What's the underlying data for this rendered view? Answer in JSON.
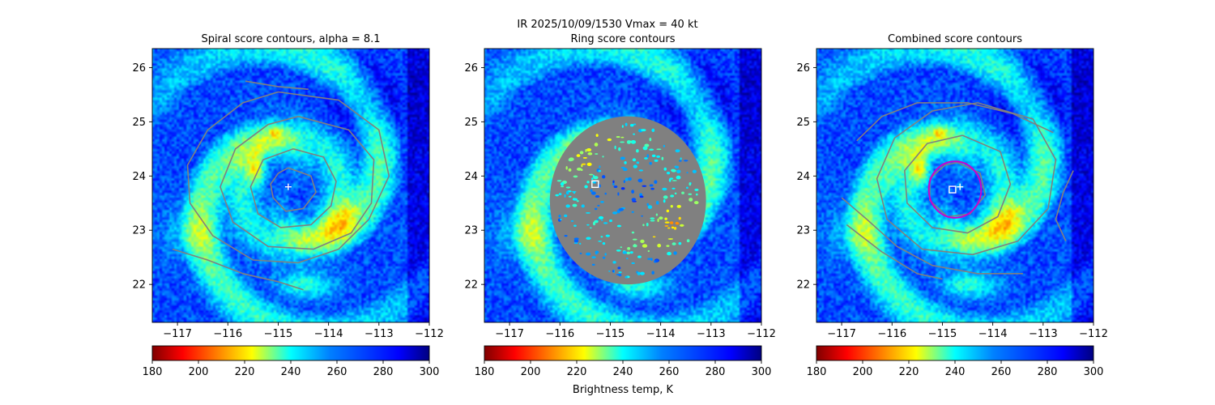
{
  "figure": {
    "suptitle": "IR  2025/10/09/1530    Vmax = 40 kt",
    "colorbar_label": "Brightness temp, K"
  },
  "chart_data": [
    {
      "type": "heatmap",
      "title": "Spiral score contours, alpha =  8.1",
      "xlim": [
        -117.5,
        -112
      ],
      "ylim": [
        21.3,
        26.35
      ],
      "xticks": [
        -117,
        -116,
        -115,
        -114,
        -113,
        -112
      ],
      "xtick_labels": [
        "−117",
        "−116",
        "−115",
        "−114",
        "−113",
        "−112"
      ],
      "yticks": [
        22,
        23,
        24,
        25,
        26
      ],
      "ytick_labels": [
        "22",
        "23",
        "24",
        "25",
        "26"
      ],
      "colormap": "jet_r",
      "colorbar": {
        "min": 180,
        "max": 300,
        "ticks": [
          180,
          200,
          220,
          240,
          260,
          280,
          300
        ],
        "labels": [
          "180",
          "200",
          "220",
          "240",
          "260",
          "280",
          "300"
        ]
      },
      "contour_color": "#808080",
      "contours": [
        [
          [
            -114.8,
            24.15
          ],
          [
            -114.35,
            24.0
          ],
          [
            -114.25,
            23.7
          ],
          [
            -114.5,
            23.4
          ],
          [
            -114.85,
            23.35
          ],
          [
            -115.1,
            23.6
          ],
          [
            -115.15,
            23.85
          ],
          [
            -115.0,
            24.05
          ],
          [
            -114.8,
            24.15
          ]
        ],
        [
          [
            -114.7,
            24.5
          ],
          [
            -114.1,
            24.35
          ],
          [
            -113.85,
            23.9
          ],
          [
            -113.95,
            23.45
          ],
          [
            -114.35,
            23.1
          ],
          [
            -114.95,
            23.05
          ],
          [
            -115.4,
            23.3
          ],
          [
            -115.55,
            23.8
          ],
          [
            -115.3,
            24.3
          ],
          [
            -114.7,
            24.5
          ]
        ],
        [
          [
            -114.6,
            25.1
          ],
          [
            -113.6,
            24.85
          ],
          [
            -113.1,
            24.3
          ],
          [
            -113.15,
            23.5
          ],
          [
            -113.55,
            22.95
          ],
          [
            -114.3,
            22.65
          ],
          [
            -115.2,
            22.7
          ],
          [
            -115.9,
            23.15
          ],
          [
            -116.15,
            23.8
          ],
          [
            -115.85,
            24.5
          ],
          [
            -115.2,
            24.95
          ],
          [
            -114.6,
            25.1
          ]
        ],
        [
          [
            -115.0,
            25.55
          ],
          [
            -113.8,
            25.4
          ],
          [
            -113.0,
            24.85
          ],
          [
            -112.8,
            24.0
          ],
          [
            -113.2,
            23.2
          ],
          [
            -113.8,
            22.65
          ],
          [
            -114.6,
            22.4
          ],
          [
            -115.5,
            22.45
          ],
          [
            -116.3,
            22.9
          ],
          [
            -116.75,
            23.5
          ],
          [
            -116.8,
            24.2
          ],
          [
            -116.4,
            24.85
          ],
          [
            -115.7,
            25.35
          ],
          [
            -115.0,
            25.55
          ]
        ],
        [
          [
            -117.1,
            22.65
          ],
          [
            -116.4,
            22.45
          ],
          [
            -115.7,
            22.2
          ],
          [
            -115.0,
            22.05
          ],
          [
            -114.5,
            21.9
          ]
        ],
        [
          [
            -115.65,
            25.75
          ],
          [
            -115.0,
            25.65
          ],
          [
            -114.4,
            25.6
          ]
        ]
      ],
      "markers": [
        {
          "shape": "plus",
          "lon": -114.8,
          "lat": 23.8,
          "color": "#ffffff"
        }
      ]
    },
    {
      "type": "heatmap",
      "title": "Ring score contours",
      "xlim": [
        -117.5,
        -112
      ],
      "ylim": [
        21.3,
        26.35
      ],
      "xticks": [
        -117,
        -116,
        -115,
        -114,
        -113,
        -112
      ],
      "xtick_labels": [
        "−117",
        "−116",
        "−115",
        "−114",
        "−113",
        "−112"
      ],
      "yticks": [
        22,
        23,
        24,
        25,
        26
      ],
      "ytick_labels": [
        "22",
        "23",
        "24",
        "25",
        "26"
      ],
      "colormap": "jet_r",
      "colorbar": {
        "min": 180,
        "max": 300,
        "ticks": [
          180,
          200,
          220,
          240,
          260,
          280,
          300
        ],
        "labels": [
          "180",
          "200",
          "220",
          "240",
          "260",
          "280",
          "300"
        ]
      },
      "contour_color": "#808080",
      "ring_disk": {
        "lon": -114.65,
        "lat": 23.55,
        "radius_deg": 1.55
      },
      "markers": [
        {
          "shape": "square",
          "lon": -115.3,
          "lat": 23.85,
          "color": "#ffffff"
        }
      ]
    },
    {
      "type": "heatmap",
      "title": "Combined score contours",
      "xlim": [
        -117.5,
        -112
      ],
      "ylim": [
        21.3,
        26.35
      ],
      "xticks": [
        -117,
        -116,
        -115,
        -114,
        -113,
        -112
      ],
      "xtick_labels": [
        "−117",
        "−116",
        "−115",
        "−114",
        "−113",
        "−112"
      ],
      "yticks": [
        22,
        23,
        24,
        25,
        26
      ],
      "ytick_labels": [
        "22",
        "23",
        "24",
        "25",
        "26"
      ],
      "colormap": "jet_r",
      "colorbar": {
        "min": 180,
        "max": 300,
        "ticks": [
          180,
          200,
          220,
          240,
          260,
          280,
          300
        ],
        "labels": [
          "180",
          "200",
          "220",
          "240",
          "260",
          "280",
          "300"
        ]
      },
      "contour_color": "#808080",
      "contours": [
        [
          [
            -114.7,
            24.25
          ],
          [
            -114.25,
            24.05
          ],
          [
            -114.15,
            23.65
          ],
          [
            -114.45,
            23.3
          ],
          [
            -114.9,
            23.25
          ],
          [
            -115.25,
            23.55
          ],
          [
            -115.25,
            23.95
          ],
          [
            -114.95,
            24.2
          ],
          [
            -114.7,
            24.25
          ]
        ],
        [
          [
            -114.6,
            24.75
          ],
          [
            -113.85,
            24.45
          ],
          [
            -113.65,
            23.85
          ],
          [
            -113.9,
            23.25
          ],
          [
            -114.5,
            22.95
          ],
          [
            -115.2,
            23.05
          ],
          [
            -115.7,
            23.5
          ],
          [
            -115.75,
            24.1
          ],
          [
            -115.3,
            24.6
          ],
          [
            -114.6,
            24.75
          ]
        ],
        [
          [
            -114.3,
            25.35
          ],
          [
            -113.2,
            25.05
          ],
          [
            -112.75,
            24.3
          ],
          [
            -112.9,
            23.4
          ],
          [
            -113.5,
            22.8
          ],
          [
            -114.4,
            22.55
          ],
          [
            -115.4,
            22.65
          ],
          [
            -116.1,
            23.2
          ],
          [
            -116.3,
            23.95
          ],
          [
            -115.95,
            24.7
          ],
          [
            -115.2,
            25.2
          ],
          [
            -114.3,
            25.35
          ]
        ],
        [
          [
            -116.7,
            24.65
          ],
          [
            -116.2,
            25.1
          ],
          [
            -115.5,
            25.35
          ],
          [
            -114.5,
            25.35
          ],
          [
            -113.6,
            25.15
          ],
          [
            -112.8,
            24.8
          ]
        ],
        [
          [
            -117.0,
            23.6
          ],
          [
            -116.5,
            23.2
          ],
          [
            -115.9,
            22.7
          ],
          [
            -115.2,
            22.35
          ],
          [
            -114.3,
            22.2
          ],
          [
            -113.4,
            22.2
          ]
        ],
        [
          [
            -116.9,
            23.1
          ],
          [
            -116.2,
            22.6
          ],
          [
            -115.5,
            22.2
          ],
          [
            -115.0,
            22.1
          ]
        ],
        [
          [
            -112.4,
            24.1
          ],
          [
            -112.6,
            23.7
          ],
          [
            -112.75,
            23.2
          ],
          [
            -112.55,
            22.8
          ]
        ]
      ],
      "ring_circle": {
        "lon": -114.75,
        "lat": 23.75,
        "radius_deg": 0.52,
        "color": "#cc00cc"
      },
      "markers": [
        {
          "shape": "square",
          "lon": -114.8,
          "lat": 23.75,
          "color": "#ffffff"
        },
        {
          "shape": "plus",
          "lon": -114.65,
          "lat": 23.8,
          "color": "#ffffff"
        }
      ]
    }
  ]
}
